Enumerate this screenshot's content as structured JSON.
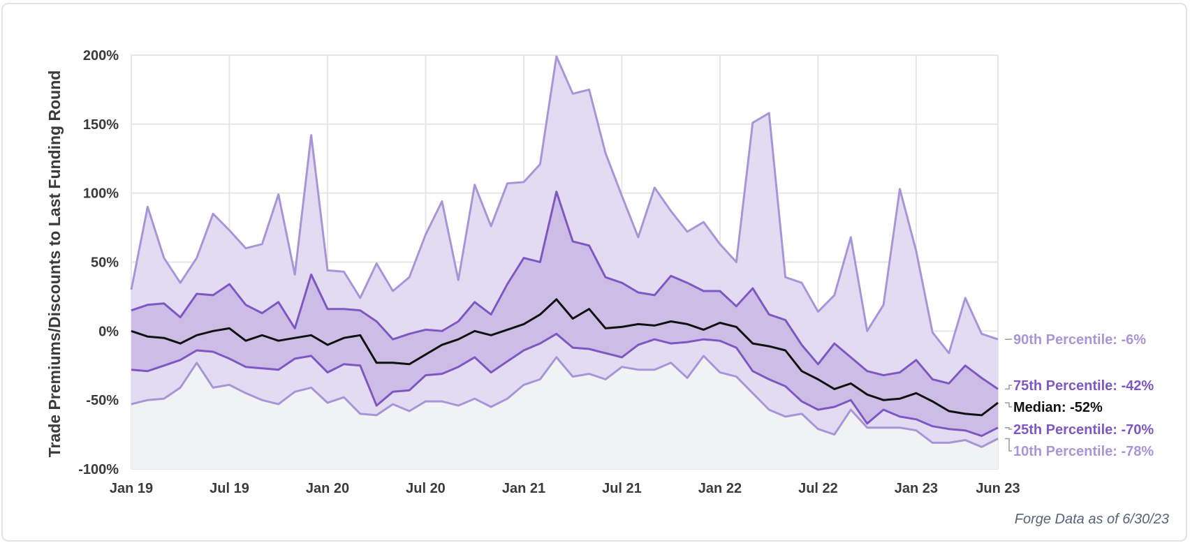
{
  "chart_data": {
    "type": "area",
    "ylabel": "Trade Premiums/Discounts to Last Funding Round",
    "xlabel": "",
    "ylim": [
      -100,
      200
    ],
    "y_ticks": [
      200,
      150,
      100,
      50,
      0,
      -50,
      -100
    ],
    "y_tick_labels": [
      "200%",
      "150%",
      "100%",
      "50%",
      "0%",
      "-50%",
      "-100%"
    ],
    "x_ticks": [
      0,
      6,
      12,
      18,
      24,
      30,
      36,
      42,
      48,
      53
    ],
    "x_tick_labels": [
      "Jan 19",
      "Jul 19",
      "Jan 20",
      "Jul 20",
      "Jan 21",
      "Jul 21",
      "Jan 22",
      "Jul 22",
      "Jan 23",
      "Jun 23"
    ],
    "grid": true,
    "footnote": "Forge Data as of 6/30/23",
    "colors": {
      "p90": "#a895d8",
      "p75": "#7e57c2",
      "median": "#111111",
      "p25": "#7e57c2",
      "p10": "#a895d8",
      "band_outer": "#e3dbf1",
      "band_inner": "#cdbde6",
      "below": "#f1f2f4",
      "grid": "#e6e6e6"
    },
    "series": [
      {
        "name": "90th Percentile",
        "label": "90th Percentile: -6%",
        "key": "p90",
        "values": [
          30,
          90,
          53,
          35,
          53,
          85,
          73,
          60,
          63,
          99,
          41,
          142,
          44,
          43,
          24,
          49,
          29,
          39,
          70,
          94,
          37,
          106,
          76,
          107,
          108,
          121,
          199,
          172,
          175,
          129,
          98,
          68,
          104,
          87,
          72,
          79,
          63,
          50,
          151,
          158,
          39,
          35,
          14,
          26,
          68,
          0,
          19,
          103,
          58,
          -1,
          -16,
          24,
          -2,
          -6
        ]
      },
      {
        "name": "75th Percentile",
        "label": "75th Percentile: -42%",
        "key": "p75",
        "values": [
          15,
          19,
          20,
          10,
          27,
          26,
          34,
          19,
          13,
          21,
          2,
          41,
          16,
          16,
          15,
          7,
          -6,
          -2,
          1,
          0,
          7,
          21,
          12,
          34,
          53,
          50,
          101,
          65,
          62,
          39,
          35,
          28,
          26,
          40,
          35,
          29,
          29,
          18,
          31,
          12,
          8,
          -10,
          -24,
          -9,
          -19,
          -29,
          -32,
          -30,
          -21,
          -35,
          -38,
          -25,
          -34,
          -42
        ]
      },
      {
        "name": "Median",
        "label": "Median: -52%",
        "key": "median",
        "values": [
          0,
          -4,
          -5,
          -9,
          -3,
          0,
          2,
          -7,
          -3,
          -7,
          -5,
          -3,
          -10,
          -5,
          -3,
          -23,
          -23,
          -24,
          -17,
          -10,
          -6,
          0,
          -3,
          1,
          5,
          12,
          23,
          9,
          16,
          2,
          3,
          5,
          4,
          7,
          5,
          1,
          6,
          3,
          -9,
          -11,
          -14,
          -29,
          -35,
          -42,
          -38,
          -46,
          -50,
          -49,
          -45,
          -51,
          -58,
          -60,
          -61,
          -52
        ]
      },
      {
        "name": "25th Percentile",
        "label": "25th Percentile: -70%",
        "key": "p25",
        "values": [
          -28,
          -29,
          -25,
          -21,
          -14,
          -15,
          -20,
          -26,
          -27,
          -28,
          -20,
          -18,
          -30,
          -24,
          -25,
          -54,
          -44,
          -43,
          -32,
          -31,
          -26,
          -19,
          -30,
          -22,
          -14,
          -9,
          -2,
          -12,
          -13,
          -16,
          -19,
          -10,
          -6,
          -9,
          -8,
          -6,
          -7,
          -12,
          -29,
          -35,
          -40,
          -51,
          -57,
          -55,
          -50,
          -67,
          -57,
          -62,
          -64,
          -69,
          -71,
          -72,
          -76,
          -70
        ]
      },
      {
        "name": "10th Percentile",
        "label": "10th Percentile: -78%",
        "key": "p10",
        "values": [
          -53,
          -50,
          -49,
          -41,
          -23,
          -41,
          -39,
          -45,
          -50,
          -53,
          -44,
          -41,
          -52,
          -48,
          -60,
          -61,
          -53,
          -58,
          -51,
          -51,
          -54,
          -49,
          -55,
          -49,
          -39,
          -35,
          -19,
          -33,
          -31,
          -35,
          -26,
          -28,
          -28,
          -23,
          -34,
          -18,
          -30,
          -33,
          -45,
          -57,
          -62,
          -60,
          -71,
          -75,
          -57,
          -70,
          -70,
          -70,
          -72,
          -81,
          -81,
          -79,
          -84,
          -78
        ]
      }
    ]
  }
}
